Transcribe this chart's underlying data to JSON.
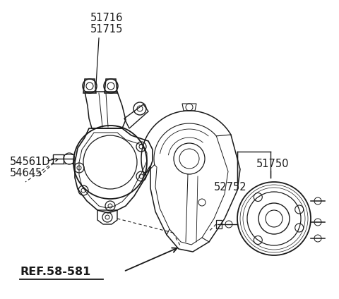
{
  "bg_color": "#ffffff",
  "line_color": "#1a1a1a",
  "figsize": [
    4.8,
    4.24
  ],
  "dpi": 100,
  "label_51716": "51716",
  "label_51715": "51715",
  "label_54561D": "54561D",
  "label_54645": "54645",
  "label_ref": "REF.58-581",
  "label_51750": "51750",
  "label_52752": "52752",
  "fontsize_main": 10.5,
  "fontsize_ref": 11.5
}
